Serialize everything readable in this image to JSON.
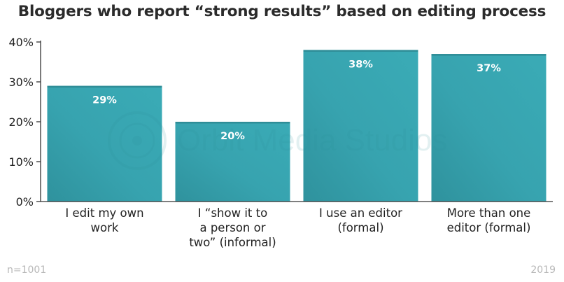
{
  "chart_data": {
    "type": "bar",
    "title": "Bloggers who report “strong results” based on editing process",
    "categories": [
      "I edit my own work",
      "I “show it to a person or two” (informal)",
      "I use an editor (formal)",
      "More than one editor (formal)"
    ],
    "category_lines": [
      [
        "I edit my own",
        "work"
      ],
      [
        "I “show it to",
        "a person or",
        "two” (informal)"
      ],
      [
        "I use an editor",
        "(formal)"
      ],
      [
        "More than one",
        "editor (formal)"
      ]
    ],
    "values": [
      29,
      20,
      38,
      37
    ],
    "data_labels": [
      "29%",
      "20%",
      "38%",
      "37%"
    ],
    "ylim": [
      0,
      40
    ],
    "yticks": [
      0,
      10,
      20,
      30,
      40
    ],
    "ytick_labels": [
      "0%",
      "10%",
      "20%",
      "30%",
      "40%"
    ],
    "xlabel": "",
    "ylabel": "",
    "grid": false,
    "bar_color": "#37a5b1",
    "label_color": "#ffffff"
  },
  "footer": {
    "sample_size": "n=1001",
    "year": "2019"
  },
  "watermark": {
    "text": "Orbit Media Studios",
    "color": "#2c8f99"
  }
}
